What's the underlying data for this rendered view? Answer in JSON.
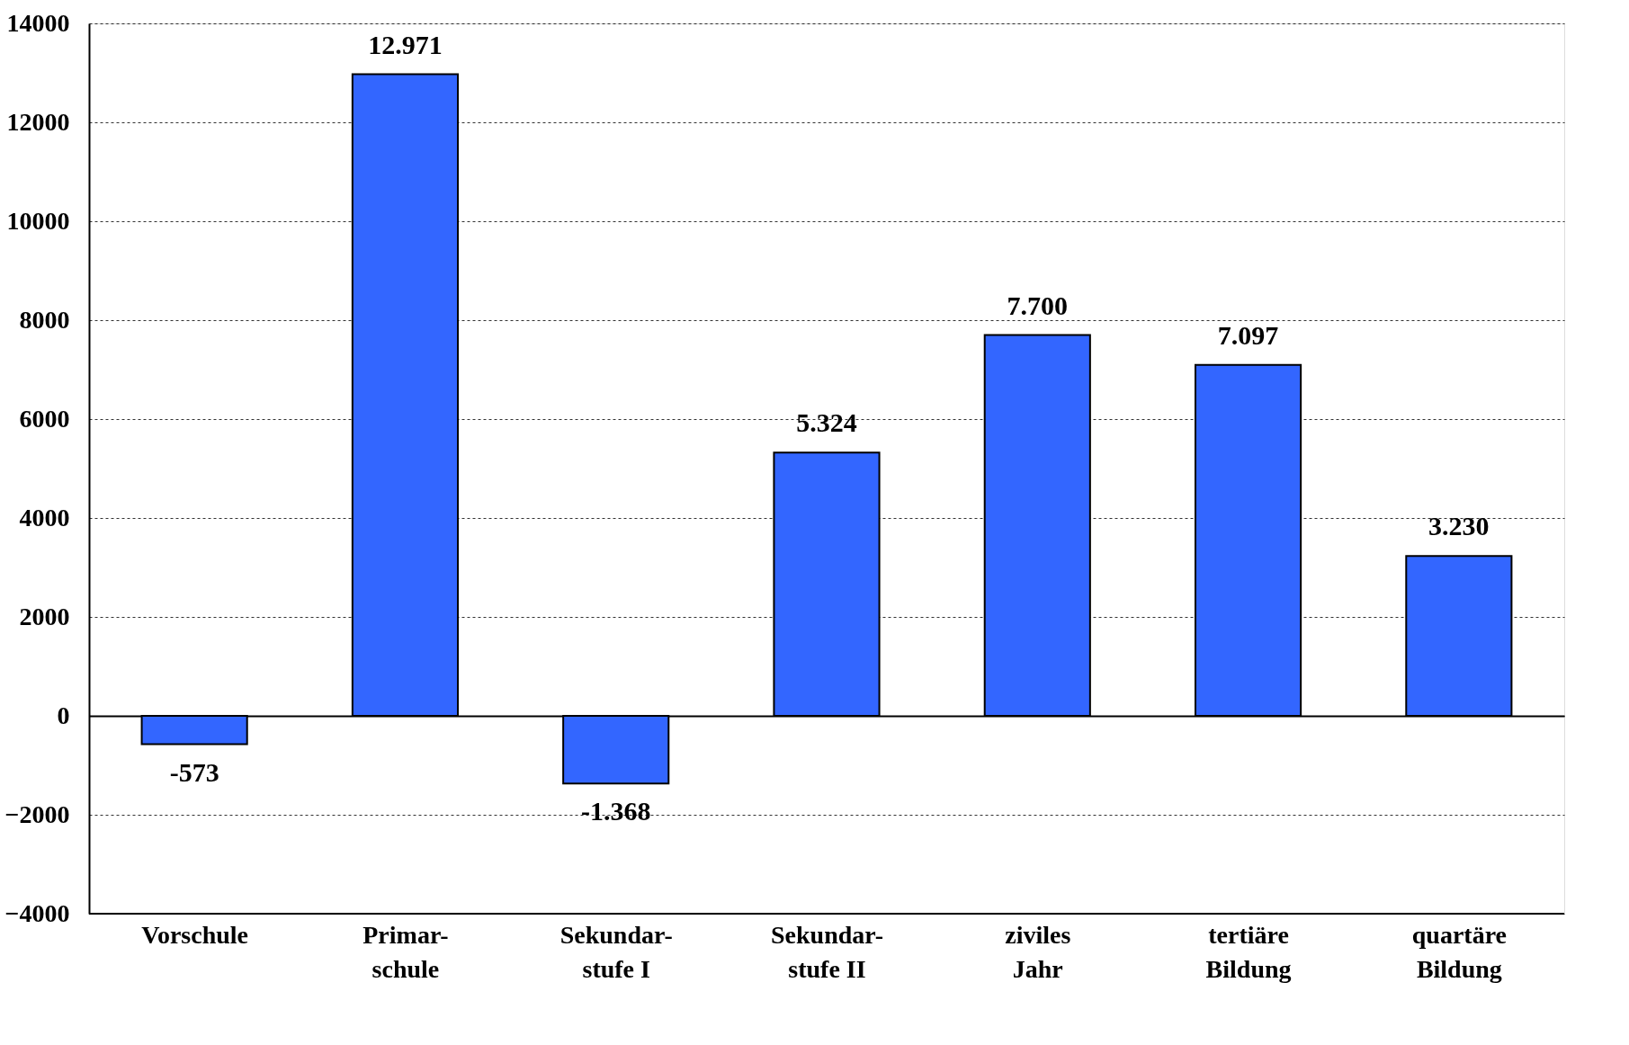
{
  "chart_data": {
    "type": "bar",
    "categories": [
      "Vorschule",
      "Primar-\nschule",
      "Sekundar-\nstufe I",
      "Sekundar-\nstufe II",
      "ziviles\nJahr",
      "tertiäre\nBildung",
      "quartäre\nBildung"
    ],
    "values": [
      -573,
      12971,
      -1368,
      5324,
      7700,
      7097,
      3230
    ],
    "value_labels": [
      "-573",
      "12.971",
      "-1.368",
      "5.324",
      "7.700",
      "7.097",
      "3.230"
    ],
    "color": "#3366ff",
    "ylim": [
      -4000,
      14000
    ],
    "yticks": [
      -4000,
      -2000,
      0,
      2000,
      4000,
      6000,
      8000,
      10000,
      12000,
      14000
    ],
    "grid": "y"
  }
}
